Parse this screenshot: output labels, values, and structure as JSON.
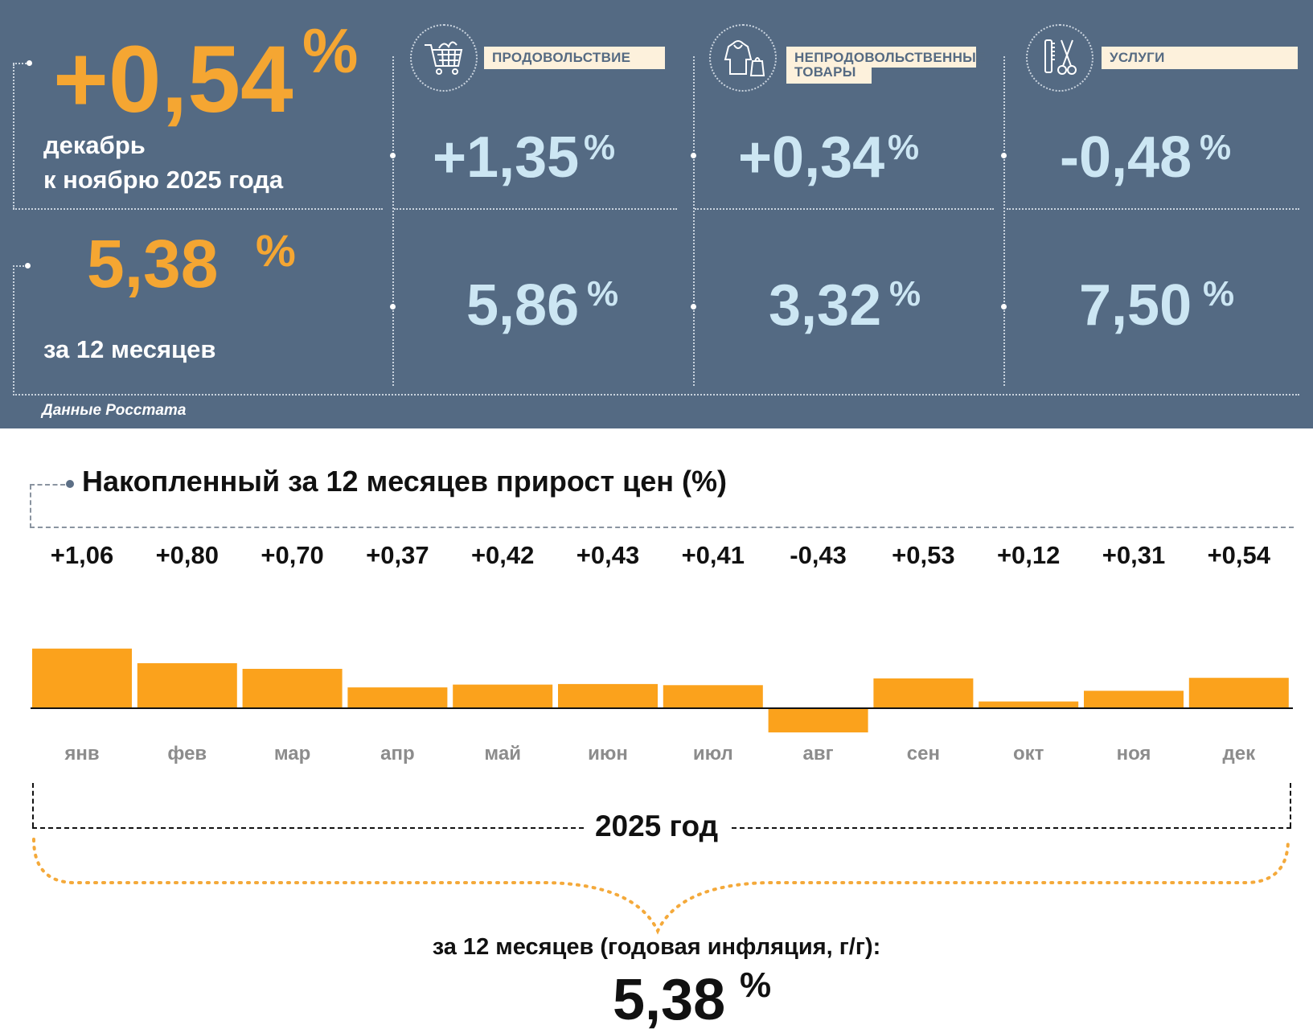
{
  "header": {
    "monthly_value": "+0,54",
    "monthly_pct": "%",
    "monthly_caption_line1": "декабрь",
    "monthly_caption_line2": "к ноябрю 2025 года",
    "annual_value": "5,38",
    "annual_pct": "%",
    "annual_caption": "за 12 месяцев",
    "source": "Данные Росстата"
  },
  "categories": [
    {
      "label": "ПРОДОВОЛЬСТВИЕ",
      "icon": "shopping-cart-icon",
      "monthly": "+1,35",
      "annual": "5,86",
      "pct": "%"
    },
    {
      "label_line1": "НЕПРОДОВОЛЬСТВЕННЫЕ",
      "label_line2": "ТОВАРЫ",
      "icon": "hoodie-bag-icon",
      "monthly": "+0,34",
      "annual": "3,32",
      "pct": "%"
    },
    {
      "label": "УСЛУГИ",
      "icon": "comb-scissors-icon",
      "monthly": "-0,48",
      "annual": "7,50",
      "pct": "%"
    }
  ],
  "chart_data": {
    "type": "bar",
    "title": "Накопленный за 12 месяцев прирост цен (%)",
    "categories": [
      "янв",
      "фев",
      "мар",
      "апр",
      "май",
      "июн",
      "июл",
      "авг",
      "сен",
      "окт",
      "ноя",
      "дек"
    ],
    "values": [
      1.06,
      0.8,
      0.7,
      0.37,
      0.42,
      0.43,
      0.41,
      -0.43,
      0.53,
      0.12,
      0.31,
      0.54
    ],
    "value_labels": [
      "+1,06",
      "+0,80",
      "+0,70",
      "+0,37",
      "+0,42",
      "+0,43",
      "+0,41",
      "-0,43",
      "+0,53",
      "+0,12",
      "+0,31",
      "+0,54"
    ],
    "bar_color": "#fba21c",
    "xlabel": "2025 год",
    "ylabel": ""
  },
  "footer": {
    "caption": "за 12 месяцев (годовая инфляция, г/г):",
    "value": "5,38",
    "pct": "%"
  },
  "colors": {
    "panel_bg": "#546a83",
    "accent_orange": "#f5a632",
    "light_blue": "#cce6f3",
    "label_bg": "#fdf1dc"
  }
}
